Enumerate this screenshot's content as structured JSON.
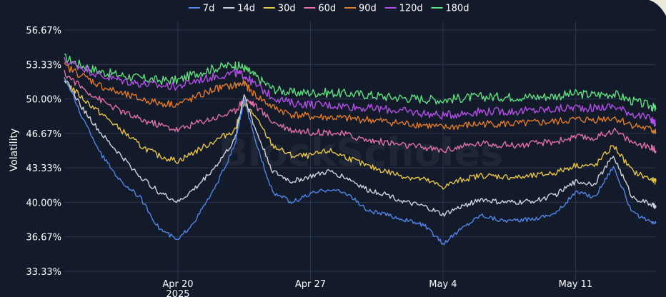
{
  "chart_data": {
    "type": "line",
    "ylabel": "Volatility",
    "watermark": "BlockScholes",
    "ylim": [
      33.33,
      56.67
    ],
    "y_ticks": [
      "56.67%",
      "53.33%",
      "50.00%",
      "46.67%",
      "43.33%",
      "40.00%",
      "36.67%",
      "33.33%"
    ],
    "y_tick_values": [
      56.67,
      53.33,
      50.0,
      46.67,
      43.33,
      40.0,
      36.67,
      33.33
    ],
    "x_range": [
      "2025-04-14T00:00",
      "2025-05-15T06:00"
    ],
    "x_ticks": [
      {
        "date": "2025-04-20T00:00",
        "label": "Apr 20",
        "sublabel": "2025"
      },
      {
        "date": "2025-04-27T00:00",
        "label": "Apr 27",
        "sublabel": ""
      },
      {
        "date": "2025-05-04T00:00",
        "label": "May 4",
        "sublabel": ""
      },
      {
        "date": "2025-05-11T00:00",
        "label": "May 11",
        "sublabel": ""
      }
    ],
    "grid": true,
    "legend_position": "top-center",
    "x": [
      "2025-04-14T00:00",
      "2025-04-15T00:00",
      "2025-04-16T00:00",
      "2025-04-17T00:00",
      "2025-04-18T00:00",
      "2025-04-19T00:00",
      "2025-04-20T00:00",
      "2025-04-21T00:00",
      "2025-04-22T00:00",
      "2025-04-23T00:00",
      "2025-04-23T12:00",
      "2025-04-24T00:00",
      "2025-04-25T00:00",
      "2025-04-26T00:00",
      "2025-04-27T00:00",
      "2025-04-28T00:00",
      "2025-04-29T00:00",
      "2025-04-30T00:00",
      "2025-05-01T00:00",
      "2025-05-02T00:00",
      "2025-05-03T00:00",
      "2025-05-04T00:00",
      "2025-05-05T00:00",
      "2025-05-06T00:00",
      "2025-05-07T00:00",
      "2025-05-08T00:00",
      "2025-05-09T00:00",
      "2025-05-10T00:00",
      "2025-05-11T00:00",
      "2025-05-12T00:00",
      "2025-05-13T00:00",
      "2025-05-14T00:00",
      "2025-05-15T00:00",
      "2025-05-15T06:00"
    ],
    "series": [
      {
        "name": "7d",
        "color": "#4f86e8",
        "values": [
          52.2,
          48.0,
          44.5,
          42.0,
          40.5,
          37.5,
          36.3,
          38.5,
          41.5,
          45.5,
          50.0,
          46.5,
          41.0,
          40.0,
          40.8,
          41.3,
          40.8,
          39.2,
          38.8,
          38.3,
          37.8,
          36.0,
          37.5,
          38.8,
          38.3,
          38.2,
          38.5,
          39.0,
          41.0,
          40.5,
          43.5,
          39.0,
          38.0,
          38.0
        ]
      },
      {
        "name": "14d",
        "color": "#cfd3db",
        "values": [
          52.0,
          49.0,
          46.5,
          44.5,
          42.5,
          41.0,
          40.0,
          41.5,
          43.5,
          46.0,
          50.5,
          47.5,
          43.0,
          42.0,
          42.5,
          43.0,
          42.3,
          41.2,
          40.8,
          40.0,
          39.6,
          38.8,
          39.6,
          40.3,
          40.0,
          40.0,
          40.2,
          40.8,
          42.0,
          41.8,
          44.5,
          40.5,
          39.8,
          39.5
        ]
      },
      {
        "name": "30d",
        "color": "#e8c547",
        "values": [
          51.8,
          50.0,
          48.5,
          47.0,
          45.5,
          44.5,
          44.0,
          45.0,
          46.0,
          47.0,
          49.5,
          48.5,
          45.5,
          44.5,
          44.5,
          45.0,
          44.3,
          43.5,
          43.0,
          42.5,
          42.2,
          41.5,
          42.2,
          42.6,
          42.5,
          42.4,
          42.6,
          42.9,
          43.6,
          43.5,
          45.5,
          43.0,
          42.2,
          42.0
        ]
      },
      {
        "name": "60d",
        "color": "#e06fa6",
        "values": [
          52.5,
          51.0,
          49.8,
          48.8,
          48.0,
          47.5,
          47.0,
          47.7,
          48.2,
          48.8,
          50.0,
          49.5,
          47.8,
          47.0,
          46.8,
          46.8,
          46.5,
          46.0,
          45.8,
          45.5,
          45.3,
          45.0,
          45.4,
          45.7,
          45.6,
          45.5,
          45.7,
          45.9,
          46.3,
          46.2,
          47.0,
          45.8,
          45.3,
          45.0
        ]
      },
      {
        "name": "90d",
        "color": "#e07a27",
        "values": [
          53.2,
          52.2,
          51.2,
          50.5,
          50.0,
          49.6,
          49.5,
          50.2,
          51.0,
          51.3,
          51.5,
          50.5,
          49.2,
          48.5,
          48.3,
          48.2,
          48.1,
          48.0,
          47.8,
          47.6,
          47.5,
          47.2,
          47.4,
          47.6,
          47.6,
          47.6,
          47.7,
          47.8,
          48.0,
          48.0,
          48.2,
          47.5,
          47.0,
          46.8
        ]
      },
      {
        "name": "120d",
        "color": "#b44ee8",
        "values": [
          53.7,
          53.0,
          52.2,
          51.8,
          51.5,
          51.3,
          51.2,
          51.8,
          52.2,
          52.5,
          52.3,
          51.5,
          50.2,
          49.6,
          49.5,
          49.4,
          49.3,
          49.1,
          49.0,
          48.8,
          48.6,
          48.4,
          48.6,
          48.8,
          48.8,
          48.8,
          48.9,
          49.0,
          49.2,
          49.1,
          49.3,
          48.6,
          48.0,
          47.5
        ]
      },
      {
        "name": "180d",
        "color": "#5ee07d",
        "values": [
          54.0,
          53.2,
          52.6,
          52.3,
          52.0,
          51.8,
          51.8,
          52.5,
          53.0,
          53.3,
          53.0,
          52.3,
          51.0,
          50.6,
          50.6,
          50.6,
          50.5,
          50.4,
          50.2,
          50.1,
          50.0,
          49.9,
          50.1,
          50.2,
          50.2,
          50.2,
          50.2,
          50.3,
          50.5,
          50.4,
          50.5,
          49.8,
          49.3,
          49.0
        ]
      }
    ]
  }
}
